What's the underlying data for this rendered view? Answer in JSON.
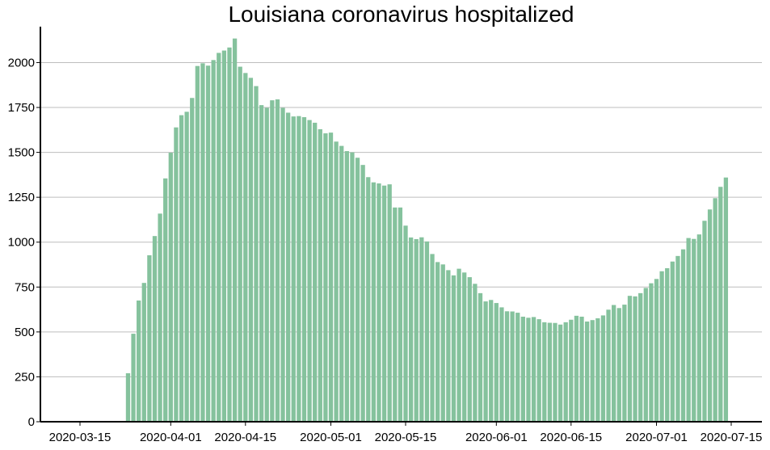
{
  "chart_data": {
    "type": "bar",
    "title": "Louisiana coronavirus hospitalized",
    "xlabel": "",
    "ylabel": "",
    "x_start": "2020-03-24",
    "values": [
      270,
      490,
      675,
      773,
      927,
      1034,
      1159,
      1355,
      1498,
      1639,
      1707,
      1726,
      1803,
      1981,
      1996,
      1983,
      2014,
      2054,
      2067,
      2084,
      2134,
      1977,
      1942,
      1915,
      1869,
      1763,
      1748,
      1790,
      1795,
      1748,
      1721,
      1700,
      1702,
      1696,
      1680,
      1665,
      1629,
      1606,
      1610,
      1560,
      1536,
      1507,
      1500,
      1470,
      1430,
      1362,
      1333,
      1327,
      1315,
      1322,
      1193,
      1193,
      1092,
      1026,
      1017,
      1027,
      1004,
      934,
      889,
      876,
      844,
      815,
      852,
      831,
      805,
      768,
      716,
      670,
      678,
      661,
      637,
      615,
      614,
      607,
      585,
      579,
      583,
      571,
      554,
      551,
      550,
      541,
      554,
      568,
      590,
      585,
      558,
      566,
      576,
      592,
      624,
      650,
      633,
      652,
      701,
      698,
      716,
      745,
      771,
      795,
      838,
      855,
      892,
      923,
      960,
      1023,
      1018,
      1043,
      1119,
      1182,
      1245,
      1308,
      1360
    ],
    "ylim": [
      0,
      2200
    ],
    "yticks": [
      0,
      250,
      500,
      750,
      1000,
      1250,
      1500,
      1750,
      2000
    ],
    "xtick_labels": [
      "2020-03-15",
      "2020-04-01",
      "2020-04-15",
      "2020-05-01",
      "2020-05-15",
      "2020-06-01",
      "2020-06-15",
      "2020-07-01",
      "2020-07-15"
    ],
    "bar_color": "#85c29d",
    "grid": "horizontal",
    "legend": "none"
  }
}
